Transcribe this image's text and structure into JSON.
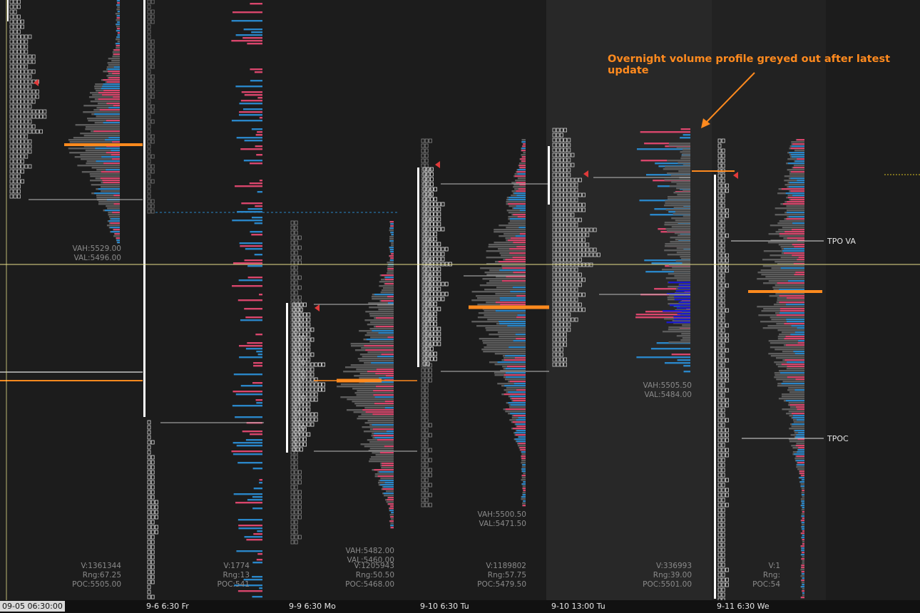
{
  "annotation": "Overnight volume profile greyed out after latest update",
  "labels": {
    "tpo_va": "TPO VA",
    "tpoc": "TPOC"
  },
  "axis": {
    "dates": [
      "09-05  06:30:00",
      "9-6  6:30 Fr",
      "9-9  6:30 Mo",
      "9-10  6:30 Tu",
      "9-10  13:00 Tu",
      "9-11  6:30 We"
    ]
  },
  "sessions": [
    {
      "id": "s1",
      "vah": "VAH:5529.00",
      "val": "VAL:5496.00",
      "v": "V:1361344",
      "rng": "Rng:67.25",
      "poc": "POC:5505.00"
    },
    {
      "id": "s2",
      "vah": "",
      "val": "",
      "v": "V:1774",
      "rng": "Rng:13",
      "poc": "POC:541"
    },
    {
      "id": "s3",
      "vah": "VAH:5482.00",
      "val": "VAL:5460.00",
      "v": "V:1205943",
      "rng": "Rng:50.50",
      "poc": "POC:5468.00"
    },
    {
      "id": "s4",
      "vah": "VAH:5500.50",
      "val": "VAL:5471.50",
      "v": "V:1189802",
      "rng": "Rng:57.75",
      "poc": "POC:5479.50"
    },
    {
      "id": "s5",
      "vah": "VAH:5505.50",
      "val": "VAL:5484.00",
      "v": "V:336993",
      "rng": "Rng:39.00",
      "poc": "POC:5501.00"
    },
    {
      "id": "s6",
      "vah": "",
      "val": "",
      "v": "V:1",
      "rng": "Rng:",
      "poc": "POC:54"
    }
  ],
  "colors": {
    "background": "#1c1c1c",
    "highlight_band": "#282828",
    "volume_grey": "#5c5c5c",
    "buy": "#2a86c8",
    "sell": "#d8466c",
    "poc": "#ff8a1e",
    "crosshair": "#e8e08a",
    "dark_blue": "#1a1acc"
  }
}
